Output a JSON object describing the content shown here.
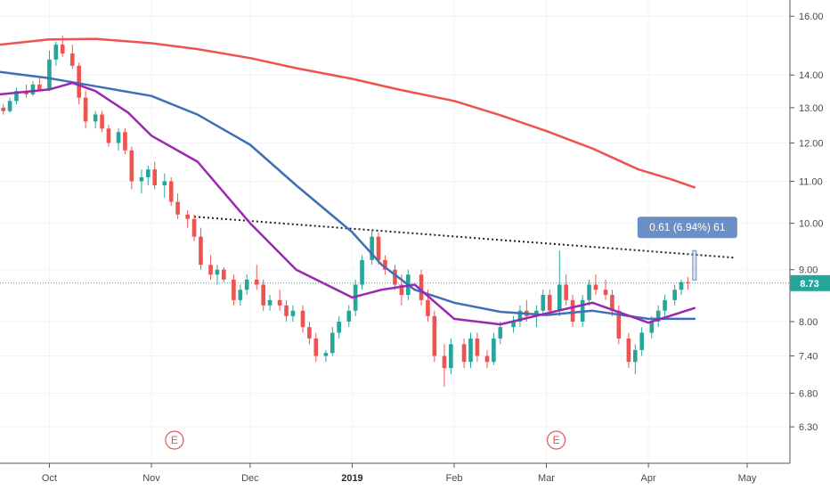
{
  "chart_data": {
    "type": "candlestick",
    "y_scale": "log",
    "ylim": [
      5.8,
      16.6
    ],
    "y_ticks": [
      "16.00",
      "14.00",
      "13.00",
      "12.00",
      "11.00",
      "10.00",
      "9.00",
      "8.00",
      "7.40",
      "6.80",
      "6.30"
    ],
    "x_ticks": [
      {
        "label": "Oct",
        "date": "2018-10-01",
        "bold": false
      },
      {
        "label": "Nov",
        "date": "2018-11-01",
        "bold": false
      },
      {
        "label": "Dec",
        "date": "2018-12-01",
        "bold": false
      },
      {
        "label": "2019",
        "date": "2019-01-01",
        "bold": true
      },
      {
        "label": "Feb",
        "date": "2019-02-01",
        "bold": false
      },
      {
        "label": "Mar",
        "date": "2019-03-01",
        "bold": false
      },
      {
        "label": "Apr",
        "date": "2019-04-01",
        "bold": false
      },
      {
        "label": "May",
        "date": "2019-05-01",
        "bold": false
      }
    ],
    "xlim": [
      "2018-09-16",
      "2019-05-14"
    ],
    "current_price": {
      "label": "8.73",
      "value": 8.73
    },
    "earnings_markers": [
      {
        "label": "E",
        "date": "2018-11-08"
      },
      {
        "label": "E",
        "date": "2019-03-04"
      }
    ],
    "measurement": {
      "label": "0.61 (6.94%) 61",
      "from": 8.79,
      "to": 9.4,
      "date": "2019-04-15"
    },
    "trendline": {
      "start": {
        "date": "2018-11-14",
        "value": 10.15
      },
      "end": {
        "date": "2019-04-27",
        "value": 9.25
      }
    },
    "colors": {
      "up": "#26a69a",
      "down": "#ef5350",
      "ma_fast": "#9c27b0",
      "ma_mid": "#3f6fb5",
      "ma_slow": "#ef5350",
      "price_line": "#26a69a",
      "measure": "#6a8fc4"
    },
    "series": [
      {
        "type": "line",
        "color_key": "ma_slow",
        "values": [
          [
            "2018-09-16",
            15.0
          ],
          [
            "2018-10-01",
            15.18
          ],
          [
            "2018-10-15",
            15.2
          ],
          [
            "2018-11-01",
            15.05
          ],
          [
            "2018-11-15",
            14.85
          ],
          [
            "2018-12-01",
            14.55
          ],
          [
            "2018-12-15",
            14.22
          ],
          [
            "2019-01-01",
            13.88
          ],
          [
            "2019-01-15",
            13.55
          ],
          [
            "2019-02-01",
            13.2
          ],
          [
            "2019-02-15",
            12.78
          ],
          [
            "2019-03-01",
            12.33
          ],
          [
            "2019-03-15",
            11.85
          ],
          [
            "2019-03-29",
            11.3
          ],
          [
            "2019-04-08",
            11.05
          ],
          [
            "2019-04-15",
            10.85
          ]
        ]
      },
      {
        "type": "line",
        "color_key": "ma_mid",
        "values": [
          [
            "2018-09-16",
            14.1
          ],
          [
            "2018-10-01",
            13.9
          ],
          [
            "2018-10-15",
            13.65
          ],
          [
            "2018-11-01",
            13.35
          ],
          [
            "2018-11-15",
            12.8
          ],
          [
            "2018-12-01",
            11.95
          ],
          [
            "2018-12-15",
            10.9
          ],
          [
            "2019-01-01",
            9.8
          ],
          [
            "2019-01-10",
            9.1
          ],
          [
            "2019-01-20",
            8.6
          ],
          [
            "2019-02-01",
            8.35
          ],
          [
            "2019-02-15",
            8.18
          ],
          [
            "2019-03-01",
            8.12
          ],
          [
            "2019-03-15",
            8.2
          ],
          [
            "2019-04-01",
            8.05
          ],
          [
            "2019-04-15",
            8.05
          ]
        ]
      },
      {
        "type": "line",
        "color_key": "ma_fast",
        "values": [
          [
            "2018-09-16",
            13.4
          ],
          [
            "2018-10-01",
            13.55
          ],
          [
            "2018-10-08",
            13.75
          ],
          [
            "2018-10-15",
            13.5
          ],
          [
            "2018-10-25",
            12.85
          ],
          [
            "2018-11-01",
            12.2
          ],
          [
            "2018-11-15",
            11.5
          ],
          [
            "2018-12-01",
            10.0
          ],
          [
            "2018-12-15",
            9.0
          ],
          [
            "2019-01-01",
            8.45
          ],
          [
            "2019-01-10",
            8.6
          ],
          [
            "2019-01-20",
            8.7
          ],
          [
            "2019-02-01",
            8.05
          ],
          [
            "2019-02-15",
            7.95
          ],
          [
            "2019-03-01",
            8.15
          ],
          [
            "2019-03-15",
            8.35
          ],
          [
            "2019-04-01",
            7.98
          ],
          [
            "2019-04-15",
            8.25
          ]
        ]
      }
    ],
    "candles": [
      [
        "2018-09-17",
        13.0,
        13.1,
        12.8,
        12.9
      ],
      [
        "2018-09-19",
        12.9,
        13.3,
        12.85,
        13.2
      ],
      [
        "2018-09-21",
        13.2,
        13.6,
        13.1,
        13.5
      ],
      [
        "2018-09-24",
        13.5,
        13.7,
        13.3,
        13.4
      ],
      [
        "2018-09-26",
        13.4,
        13.8,
        13.35,
        13.7
      ],
      [
        "2018-09-28",
        13.7,
        13.9,
        13.5,
        13.55
      ],
      [
        "2018-10-01",
        13.55,
        14.8,
        13.5,
        14.5
      ],
      [
        "2018-10-03",
        14.5,
        15.1,
        14.3,
        15.0
      ],
      [
        "2018-10-05",
        15.0,
        15.3,
        14.6,
        14.7
      ],
      [
        "2018-10-08",
        14.7,
        15.0,
        14.2,
        14.3
      ],
      [
        "2018-10-10",
        14.3,
        14.4,
        13.1,
        13.3
      ],
      [
        "2018-10-12",
        13.3,
        13.5,
        12.4,
        12.6
      ],
      [
        "2018-10-15",
        12.6,
        12.9,
        12.4,
        12.8
      ],
      [
        "2018-10-17",
        12.8,
        12.9,
        12.3,
        12.4
      ],
      [
        "2018-10-19",
        12.4,
        12.5,
        11.9,
        12.0
      ],
      [
        "2018-10-22",
        12.0,
        12.4,
        11.8,
        12.3
      ],
      [
        "2018-10-24",
        12.3,
        12.4,
        11.7,
        11.8
      ],
      [
        "2018-10-26",
        11.8,
        11.9,
        10.8,
        11.0
      ],
      [
        "2018-10-29",
        11.0,
        11.3,
        10.7,
        11.1
      ],
      [
        "2018-10-31",
        11.1,
        11.4,
        10.9,
        11.3
      ],
      [
        "2018-11-02",
        11.3,
        11.5,
        10.8,
        10.9
      ],
      [
        "2018-11-05",
        10.9,
        11.2,
        10.6,
        11.0
      ],
      [
        "2018-11-07",
        11.0,
        11.1,
        10.4,
        10.5
      ],
      [
        "2018-11-09",
        10.5,
        10.7,
        10.1,
        10.2
      ],
      [
        "2018-11-12",
        10.2,
        10.3,
        9.9,
        10.1
      ],
      [
        "2018-11-14",
        10.1,
        10.2,
        9.6,
        9.7
      ],
      [
        "2018-11-16",
        9.7,
        9.9,
        9.0,
        9.1
      ],
      [
        "2018-11-19",
        9.1,
        9.3,
        8.8,
        8.9
      ],
      [
        "2018-11-21",
        8.9,
        9.1,
        8.7,
        9.0
      ],
      [
        "2018-11-23",
        9.0,
        9.05,
        8.75,
        8.8
      ],
      [
        "2018-11-26",
        8.8,
        8.9,
        8.3,
        8.4
      ],
      [
        "2018-11-28",
        8.4,
        8.7,
        8.3,
        8.6
      ],
      [
        "2018-11-30",
        8.6,
        8.9,
        8.5,
        8.8
      ],
      [
        "2018-12-03",
        8.8,
        9.1,
        8.6,
        8.7
      ],
      [
        "2018-12-05",
        8.7,
        8.8,
        8.2,
        8.3
      ],
      [
        "2018-12-07",
        8.3,
        8.5,
        8.2,
        8.4
      ],
      [
        "2018-12-10",
        8.4,
        8.6,
        8.2,
        8.3
      ],
      [
        "2018-12-12",
        8.3,
        8.4,
        8.0,
        8.1
      ],
      [
        "2018-12-14",
        8.1,
        8.3,
        8.0,
        8.2
      ],
      [
        "2018-12-17",
        8.2,
        8.3,
        7.8,
        7.9
      ],
      [
        "2018-12-19",
        7.9,
        8.0,
        7.6,
        7.7
      ],
      [
        "2018-12-21",
        7.7,
        7.8,
        7.3,
        7.4
      ],
      [
        "2018-12-24",
        7.4,
        7.5,
        7.3,
        7.45
      ],
      [
        "2018-12-26",
        7.45,
        7.9,
        7.4,
        7.8
      ],
      [
        "2018-12-28",
        7.8,
        8.1,
        7.7,
        8.0
      ],
      [
        "2018-12-31",
        8.0,
        8.3,
        7.9,
        8.2
      ],
      [
        "2019-01-02",
        8.2,
        8.8,
        8.1,
        8.7
      ],
      [
        "2019-01-04",
        8.7,
        9.3,
        8.6,
        9.2
      ],
      [
        "2019-01-07",
        9.2,
        9.85,
        9.1,
        9.7
      ],
      [
        "2019-01-09",
        9.7,
        9.8,
        9.1,
        9.2
      ],
      [
        "2019-01-11",
        9.2,
        9.3,
        8.9,
        9.0
      ],
      [
        "2019-01-14",
        9.0,
        9.1,
        8.6,
        8.7
      ],
      [
        "2019-01-16",
        8.7,
        8.9,
        8.3,
        8.5
      ],
      [
        "2019-01-18",
        8.5,
        9.0,
        8.4,
        8.9
      ],
      [
        "2019-01-22",
        8.9,
        9.0,
        8.3,
        8.4
      ],
      [
        "2019-01-24",
        8.4,
        8.6,
        8.0,
        8.1
      ],
      [
        "2019-01-26",
        8.1,
        8.2,
        7.3,
        7.4
      ],
      [
        "2019-01-29",
        7.4,
        7.6,
        6.9,
        7.2
      ],
      [
        "2019-01-31",
        7.2,
        7.7,
        7.1,
        7.6
      ],
      [
        "2019-02-04",
        7.6,
        7.7,
        7.2,
        7.3
      ],
      [
        "2019-02-06",
        7.3,
        7.8,
        7.2,
        7.7
      ],
      [
        "2019-02-08",
        7.7,
        7.8,
        7.3,
        7.4
      ],
      [
        "2019-02-11",
        7.4,
        7.5,
        7.2,
        7.3
      ],
      [
        "2019-02-13",
        7.3,
        7.8,
        7.25,
        7.7
      ],
      [
        "2019-02-15",
        7.7,
        8.0,
        7.6,
        7.9
      ],
      [
        "2019-02-19",
        7.9,
        8.1,
        7.8,
        8.0
      ],
      [
        "2019-02-21",
        8.0,
        8.3,
        7.9,
        8.2
      ],
      [
        "2019-02-23",
        8.2,
        8.4,
        8.0,
        8.1
      ],
      [
        "2019-02-26",
        8.1,
        8.3,
        7.9,
        8.2
      ],
      [
        "2019-02-28",
        8.2,
        8.6,
        8.1,
        8.5
      ],
      [
        "2019-03-02",
        8.5,
        8.6,
        8.1,
        8.2
      ],
      [
        "2019-03-05",
        8.2,
        9.4,
        8.1,
        8.7
      ],
      [
        "2019-03-07",
        8.7,
        8.9,
        8.3,
        8.4
      ],
      [
        "2019-03-09",
        8.4,
        8.5,
        7.9,
        8.0
      ],
      [
        "2019-03-12",
        8.0,
        8.5,
        7.9,
        8.4
      ],
      [
        "2019-03-14",
        8.4,
        8.8,
        8.3,
        8.7
      ],
      [
        "2019-03-16",
        8.7,
        8.9,
        8.5,
        8.6
      ],
      [
        "2019-03-19",
        8.6,
        8.8,
        8.4,
        8.5
      ],
      [
        "2019-03-21",
        8.5,
        8.6,
        8.1,
        8.2
      ],
      [
        "2019-03-23",
        8.2,
        8.3,
        7.6,
        7.7
      ],
      [
        "2019-03-26",
        7.7,
        7.8,
        7.2,
        7.3
      ],
      [
        "2019-03-28",
        7.3,
        7.6,
        7.1,
        7.5
      ],
      [
        "2019-03-30",
        7.5,
        7.9,
        7.4,
        7.8
      ],
      [
        "2019-04-02",
        7.8,
        8.1,
        7.7,
        8.0
      ],
      [
        "2019-04-04",
        8.0,
        8.3,
        7.9,
        8.2
      ],
      [
        "2019-04-06",
        8.2,
        8.5,
        8.1,
        8.4
      ],
      [
        "2019-04-09",
        8.4,
        8.7,
        8.3,
        8.6
      ],
      [
        "2019-04-11",
        8.6,
        8.8,
        8.5,
        8.75
      ],
      [
        "2019-04-13",
        8.75,
        8.85,
        8.6,
        8.73
      ]
    ]
  }
}
